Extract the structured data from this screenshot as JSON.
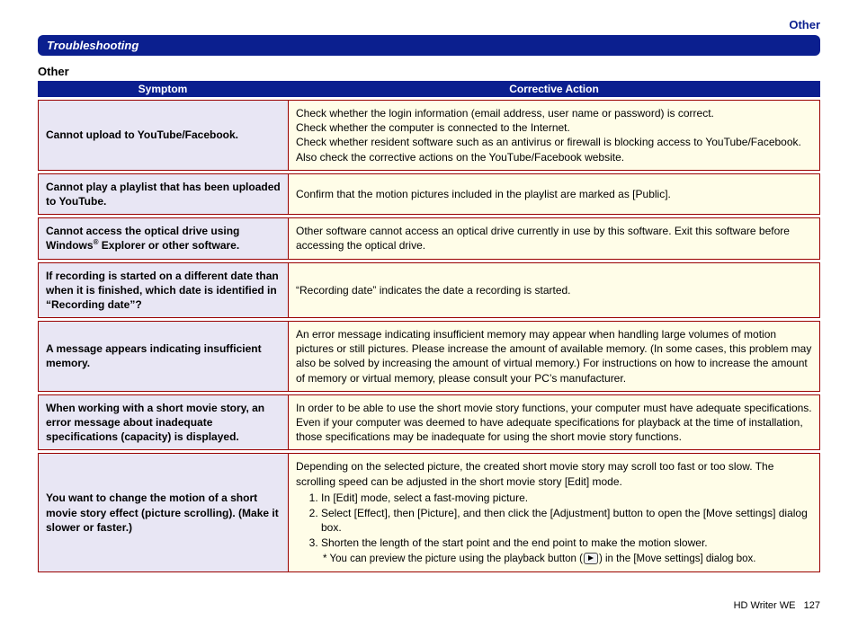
{
  "header": {
    "category_label": "Other",
    "section_title": "Troubleshooting",
    "subheading": "Other"
  },
  "table": {
    "col_symptom": "Symptom",
    "col_action": "Corrective Action",
    "rows": [
      {
        "symptom": "Cannot upload to YouTube/Facebook.",
        "action_html": "Check whether the login information (email address, user name or password) is correct.<br>Check whether the computer is connected to the Internet.<br>Check whether resident software such as an antivirus or firewall is blocking access to YouTube/Facebook.<br>Also check the corrective actions on the YouTube/Facebook website."
      },
      {
        "symptom": "Cannot play a playlist that has been uploaded to YouTube.",
        "action_html": "Confirm that the motion pictures included in the playlist are marked as [Public]."
      },
      {
        "symptom_html": "Cannot access the optical drive using Windows<sup>®</sup> Explorer or other software.",
        "action_html": "Other software cannot access an optical drive currently in use by this software. Exit this software before accessing the optical drive."
      },
      {
        "symptom": "If recording is started on a different date than when it is finished, which date is identified in “Recording date”?",
        "action_html": "“Recording date” indicates the date a recording is started."
      },
      {
        "symptom": "A message appears indicating insufficient memory.",
        "action_html": "An error message indicating insufficient memory may appear when handling large volumes of motion pictures or still pictures. Please increase the amount of available memory. (In some cases, this problem may also be solved by increasing the amount of virtual memory.) For instructions on how to increase the amount of memory or virtual memory, please consult your PC’s manufacturer."
      },
      {
        "symptom": "When working with a short movie story, an error message about inadequate specifications (capacity) is displayed.",
        "action_html": "In order to be able to use the short movie story functions, your computer must have adequate specifications. Even if your computer was deemed to have adequate specifications for playback at the time of installation, those specifications may be inadequate for using the short movie story functions."
      },
      {
        "symptom": "You want to change the motion of a short movie story effect (picture scrolling). (Make it slower or faster.)",
        "action_intro": "Depending on the selected picture, the created short movie story may scroll too fast or too slow. The scrolling speed can be adjusted in the short movie story [Edit] mode.",
        "action_steps": [
          "In [Edit] mode, select a fast-moving picture.",
          "Select [Effect], then [Picture], and then click the [Adjustment] button to open the [Move settings] dialog box.",
          "Shorten the length of the start point and the end point to make the motion slower."
        ],
        "action_note_pre": "* You can preview the picture using the playback button (",
        "action_note_post": ") in the [Move settings] dialog box."
      }
    ]
  },
  "footer": {
    "doc": "HD Writer WE",
    "page": "127"
  }
}
